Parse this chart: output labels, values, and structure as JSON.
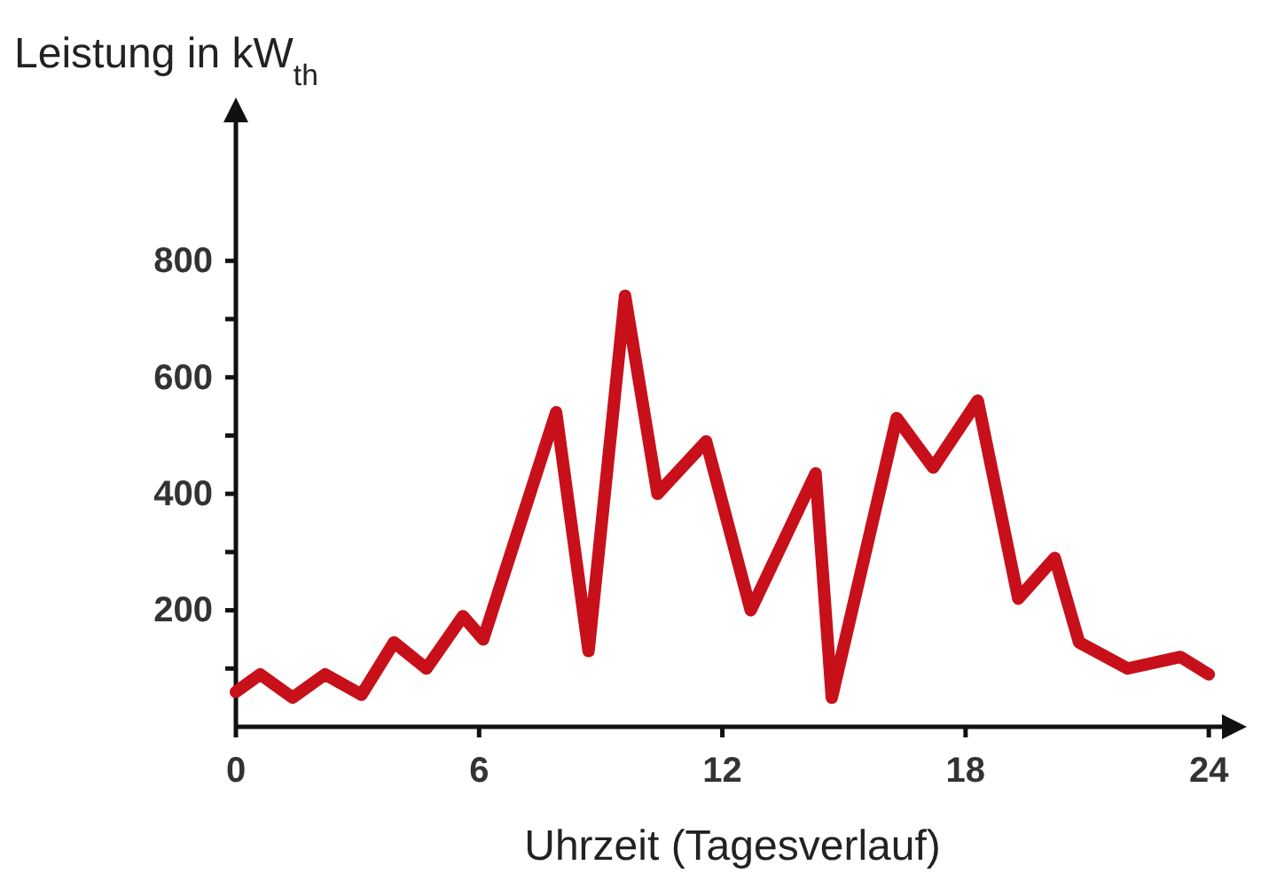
{
  "chart_data": {
    "type": "line",
    "ylabel": "Leistung in kW$_{th}$",
    "xlabel": "Uhrzeit (Tagesverlauf)",
    "x": [
      0,
      0.6,
      1.4,
      2.2,
      3.1,
      3.9,
      4.7,
      5.6,
      6.1,
      7.9,
      8.7,
      9.6,
      10.4,
      11.6,
      12.7,
      14.3,
      14.7,
      16.3,
      17.2,
      18.3,
      19.3,
      20.2,
      20.8,
      22,
      23.3,
      24
    ],
    "series": [
      {
        "color": "#c8101a",
        "values": [
          60,
          90,
          50,
          90,
          55,
          145,
          100,
          190,
          150,
          540,
          130,
          740,
          400,
          490,
          200,
          435,
          50,
          530,
          445,
          560,
          220,
          290,
          145,
          100,
          120,
          90
        ]
      }
    ],
    "xlim": [
      0,
      24.5
    ],
    "ylim": [
      0,
      1050
    ],
    "xticks": [
      0,
      6,
      12,
      18,
      24
    ],
    "yticks": [
      {
        "value": 100,
        "label": null
      },
      200,
      {
        "value": 300,
        "label": null
      },
      400,
      {
        "value": 500,
        "label": null
      },
      600,
      {
        "value": 700,
        "label": null
      },
      800
    ],
    "grid": false,
    "marker": "none",
    "line_style": "solid"
  }
}
